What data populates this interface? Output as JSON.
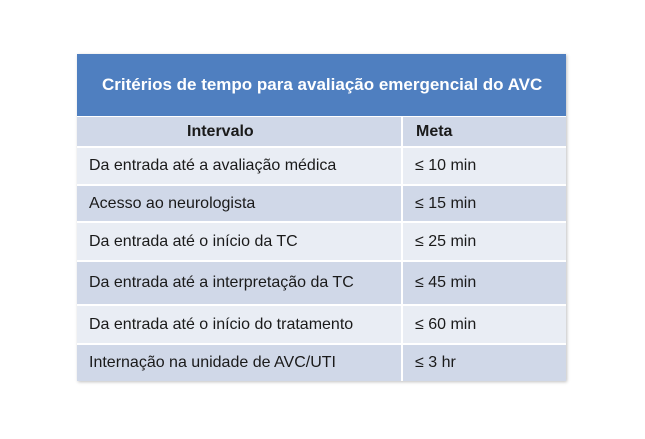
{
  "table": {
    "title": "Critérios de tempo para avaliação emergencial do AVC",
    "headers": [
      "Intervalo",
      "Meta"
    ],
    "rows": [
      [
        "Da entrada até a avaliação médica",
        "≤ 10 min"
      ],
      [
        "Acesso ao neurologista",
        "≤ 15 min"
      ],
      [
        "Da entrada até o início da TC",
        "≤ 25 min"
      ],
      [
        "Da entrada até a interpretação da TC",
        "≤ 45 min"
      ],
      [
        "Da entrada até o início do tratamento",
        "≤ 60 min"
      ],
      [
        "Internação na unidade de AVC/UTI",
        "≤ 3 hr"
      ]
    ]
  },
  "colors": {
    "title_background": "#4f7fc0",
    "row_light": "#e9edf4",
    "row_dark": "#d0d8e8"
  }
}
